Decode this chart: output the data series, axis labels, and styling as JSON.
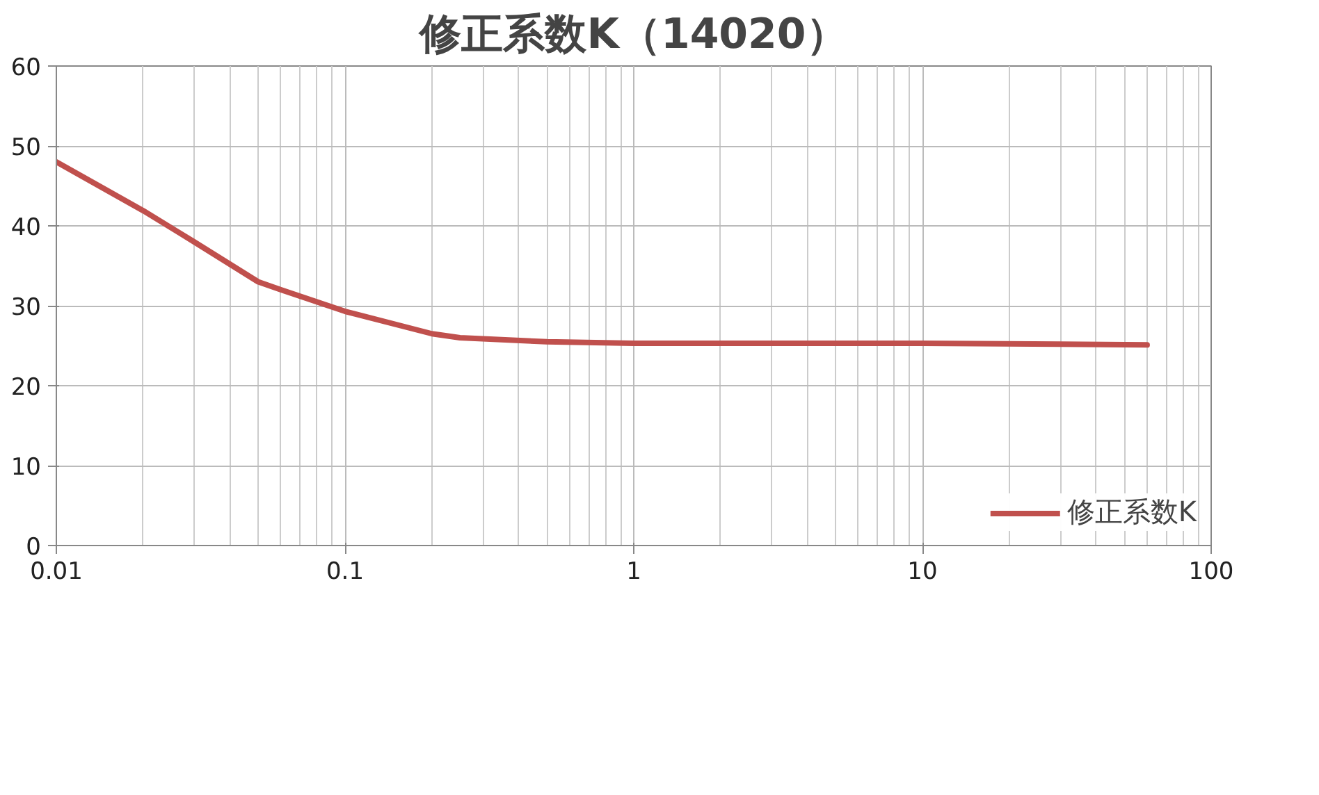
{
  "chart_data": {
    "type": "line",
    "title": "修正系数K（14020）",
    "x": [
      0.01,
      0.02,
      0.03,
      0.05,
      0.06,
      0.1,
      0.2,
      0.25,
      0.5,
      1,
      10,
      30,
      60
    ],
    "series": [
      {
        "name": "修正系数K",
        "color": "#c0504d",
        "values": [
          48,
          41.9,
          38,
          33,
          32,
          29.3,
          26.5,
          26,
          25.5,
          25.3,
          25.3,
          25.2,
          25.1
        ]
      }
    ],
    "xlim": [
      0.01,
      100
    ],
    "xticks": [
      0.01,
      0.1,
      1,
      10,
      100
    ],
    "ylim": [
      0,
      60
    ],
    "yticks": [
      0,
      10,
      20,
      30,
      40,
      50,
      60
    ],
    "log": "x",
    "grid": true,
    "legend": "bottom right",
    "marker": "none",
    "line_style": "solid"
  }
}
